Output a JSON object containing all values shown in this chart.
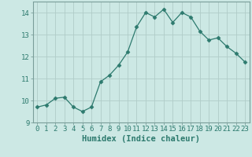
{
  "x": [
    0,
    1,
    2,
    3,
    4,
    5,
    6,
    7,
    8,
    9,
    10,
    11,
    12,
    13,
    14,
    15,
    16,
    17,
    18,
    19,
    20,
    21,
    22,
    23
  ],
  "y": [
    9.7,
    9.8,
    10.1,
    10.15,
    9.7,
    9.5,
    9.7,
    10.85,
    11.15,
    11.6,
    12.2,
    13.35,
    14.0,
    13.8,
    14.15,
    13.55,
    14.0,
    13.8,
    13.15,
    12.75,
    12.85,
    12.45,
    12.15,
    11.75
  ],
  "line_color": "#2d7a6e",
  "marker": "D",
  "marker_size": 2.5,
  "bg_color": "#cce8e4",
  "grid_color": "#b0ccc8",
  "xlabel": "Humidex (Indice chaleur)",
  "xlim": [
    -0.5,
    23.5
  ],
  "ylim": [
    9.0,
    14.5
  ],
  "yticks": [
    9,
    10,
    11,
    12,
    13,
    14
  ],
  "xticks": [
    0,
    1,
    2,
    3,
    4,
    5,
    6,
    7,
    8,
    9,
    10,
    11,
    12,
    13,
    14,
    15,
    16,
    17,
    18,
    19,
    20,
    21,
    22,
    23
  ],
  "xlabel_fontsize": 7.5,
  "tick_fontsize": 6.5,
  "label_color": "#2d7a6e",
  "spine_color": "#7a9e9a"
}
